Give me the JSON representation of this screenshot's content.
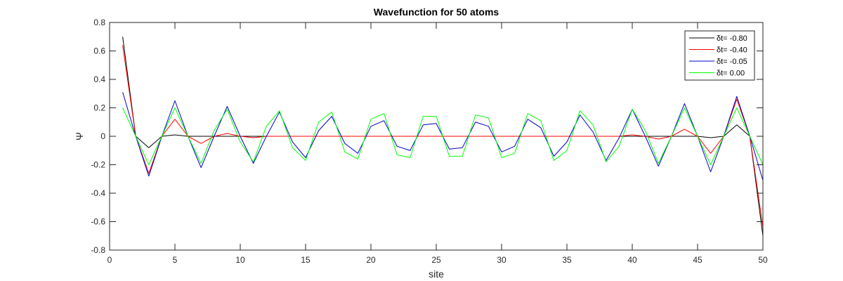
{
  "chart_data": {
    "type": "line",
    "title": "Wavefunction for 50 atoms",
    "xlabel": "site",
    "ylabel": "Ψ",
    "xlim": [
      0,
      50
    ],
    "ylim": [
      -0.8,
      0.8
    ],
    "xticks": [
      0,
      5,
      10,
      15,
      20,
      25,
      30,
      35,
      40,
      45,
      50
    ],
    "xtick_labels": [
      "0",
      "5",
      "10",
      "15",
      "20",
      "25",
      "30",
      "35",
      "40",
      "45",
      "50"
    ],
    "yticks": [
      0.8,
      0.6,
      0.4,
      0.2,
      0,
      -0.2,
      -0.4,
      -0.6,
      -0.8
    ],
    "ytick_labels": [
      "0.8",
      "0.6",
      "0.4",
      "0.2",
      "0",
      "-0.2",
      "-0.4",
      "-0.6",
      "-0.8"
    ],
    "grid": false,
    "legend_position": "top-right",
    "x": [
      1,
      2,
      3,
      4,
      5,
      6,
      7,
      8,
      9,
      10,
      11,
      12,
      13,
      14,
      15,
      16,
      17,
      18,
      19,
      20,
      21,
      22,
      23,
      24,
      25,
      26,
      27,
      28,
      29,
      30,
      31,
      32,
      33,
      34,
      35,
      36,
      37,
      38,
      39,
      40,
      41,
      42,
      43,
      44,
      45,
      46,
      47,
      48,
      49,
      50
    ],
    "series": [
      {
        "name": "δt= -0.80",
        "color": "#000000",
        "values": [
          0.7,
          0.0,
          -0.08,
          0.0,
          0.01,
          0.0,
          0.0,
          0.0,
          0.0,
          0.0,
          0.0,
          0.0,
          0.0,
          0.0,
          0.0,
          0.0,
          0.0,
          0.0,
          0.0,
          0.0,
          0.0,
          0.0,
          0.0,
          0.0,
          0.0,
          0.0,
          0.0,
          0.0,
          0.0,
          0.0,
          0.0,
          0.0,
          0.0,
          0.0,
          0.0,
          0.0,
          0.0,
          0.0,
          0.0,
          0.0,
          0.0,
          0.0,
          0.0,
          0.0,
          0.0,
          -0.01,
          0.0,
          0.08,
          0.0,
          -0.7
        ]
      },
      {
        "name": "δt= -0.40",
        "color": "#ff0000",
        "values": [
          0.64,
          0.0,
          -0.26,
          0.0,
          0.12,
          0.0,
          -0.05,
          0.0,
          0.02,
          0.0,
          -0.01,
          0.0,
          0.0,
          0.0,
          0.0,
          0.0,
          0.0,
          0.0,
          0.0,
          0.0,
          0.0,
          0.0,
          0.0,
          0.0,
          0.0,
          0.0,
          0.0,
          0.0,
          0.0,
          0.0,
          0.0,
          0.0,
          0.0,
          0.0,
          0.0,
          0.0,
          0.0,
          0.0,
          0.0,
          0.01,
          0.0,
          -0.02,
          0.0,
          0.05,
          0.0,
          -0.12,
          0.0,
          0.26,
          0.0,
          -0.64
        ]
      },
      {
        "name": "δt= -0.05",
        "color": "#0000cc",
        "values": [
          0.31,
          0.0,
          -0.28,
          0.0,
          0.25,
          0.0,
          -0.22,
          0.0,
          0.21,
          0.0,
          -0.19,
          0.0,
          0.17,
          -0.04,
          -0.15,
          0.04,
          0.14,
          -0.05,
          -0.12,
          0.07,
          0.11,
          -0.07,
          -0.1,
          0.08,
          0.09,
          -0.09,
          -0.08,
          0.1,
          0.07,
          -0.11,
          -0.07,
          0.12,
          0.06,
          -0.14,
          -0.04,
          0.15,
          0.03,
          -0.17,
          -0.01,
          0.19,
          0.0,
          -0.21,
          0.0,
          0.23,
          0.0,
          -0.25,
          0.0,
          0.28,
          0.0,
          -0.31
        ]
      },
      {
        "name": "δt= 0.00",
        "color": "#00ff00",
        "values": [
          0.2,
          0.0,
          -0.2,
          0.0,
          0.2,
          0.0,
          -0.19,
          0.04,
          0.19,
          -0.04,
          -0.18,
          0.07,
          0.18,
          -0.08,
          -0.17,
          0.1,
          0.17,
          -0.11,
          -0.16,
          0.12,
          0.16,
          -0.13,
          -0.15,
          0.14,
          0.14,
          -0.14,
          -0.14,
          0.15,
          0.13,
          -0.15,
          -0.12,
          0.16,
          0.11,
          -0.17,
          -0.1,
          0.18,
          0.08,
          -0.18,
          -0.07,
          0.19,
          0.04,
          -0.19,
          0.0,
          0.2,
          0.0,
          -0.2,
          0.0,
          0.2,
          0.0,
          -0.2
        ]
      }
    ]
  }
}
